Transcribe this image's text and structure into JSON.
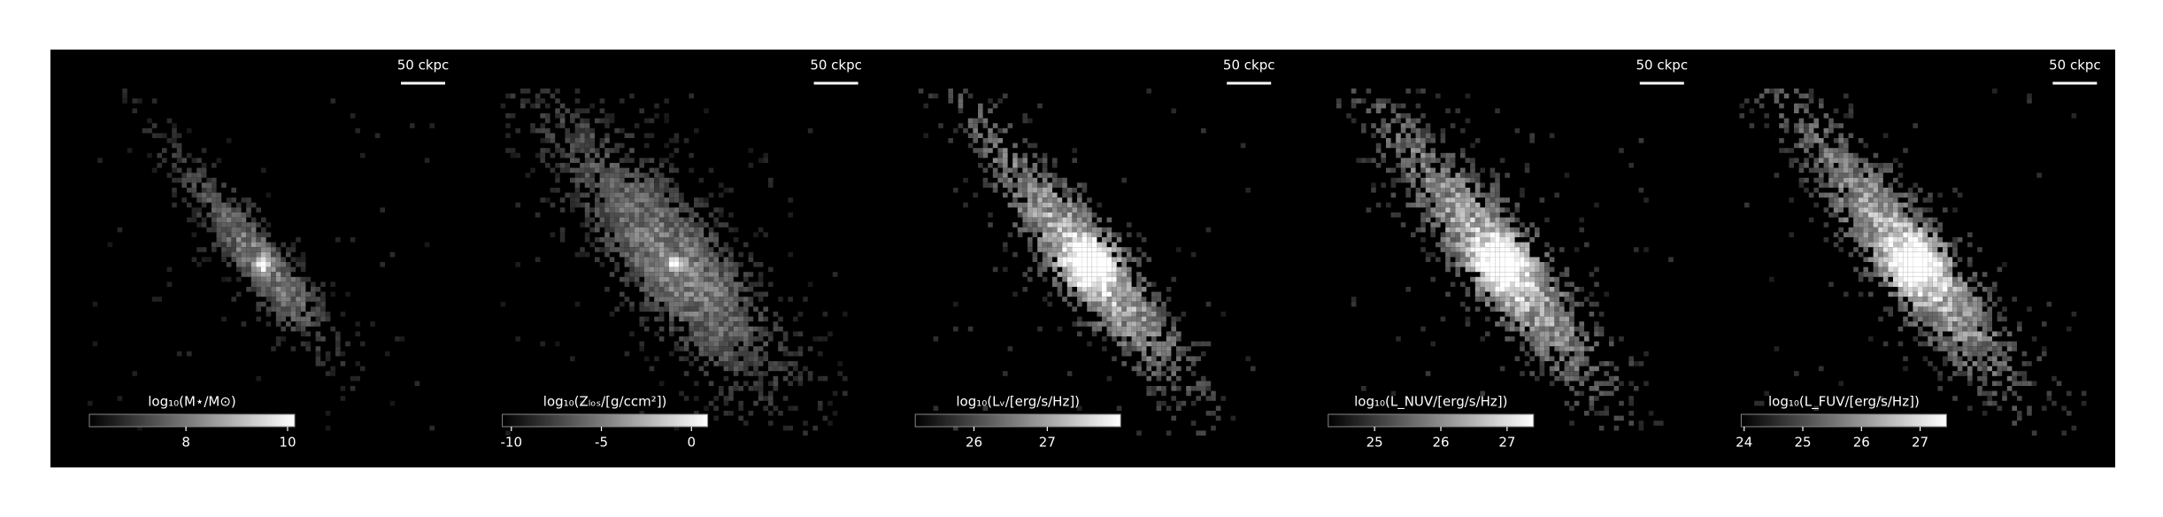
{
  "chart_data": [
    {
      "type": "image",
      "scalebar": "50 ckpc",
      "colorbar_label": "log₁₀(M⋆/M⊙)",
      "clim": [
        6.1,
        10.14
      ],
      "ticks": [
        8,
        10
      ]
    },
    {
      "type": "image",
      "scalebar": "50 ckpc",
      "colorbar_label": "log₁₀(Zₗₒₛ/[g/ccm²])",
      "clim": [
        -10.5,
        0.9
      ],
      "ticks": [
        -10,
        -5,
        0
      ]
    },
    {
      "type": "image",
      "scalebar": "50 ckpc",
      "colorbar_label": "log₁₀(Lᵥ/[erg/s/Hz])",
      "clim": [
        25.2,
        28.0
      ],
      "ticks": [
        26,
        27
      ]
    },
    {
      "type": "image",
      "scalebar": "50 ckpc",
      "colorbar_label": "log₁₀(L_NUV/[erg/s/Hz])",
      "clim": [
        24.3,
        27.4
      ],
      "ticks": [
        25,
        26,
        27
      ]
    },
    {
      "type": "image",
      "scalebar": "50 ckpc",
      "colorbar_label": "log₁₀(L_FUV/[erg/s/Hz])",
      "clim": [
        23.95,
        27.45
      ],
      "ticks": [
        24,
        25,
        26,
        27
      ]
    }
  ]
}
